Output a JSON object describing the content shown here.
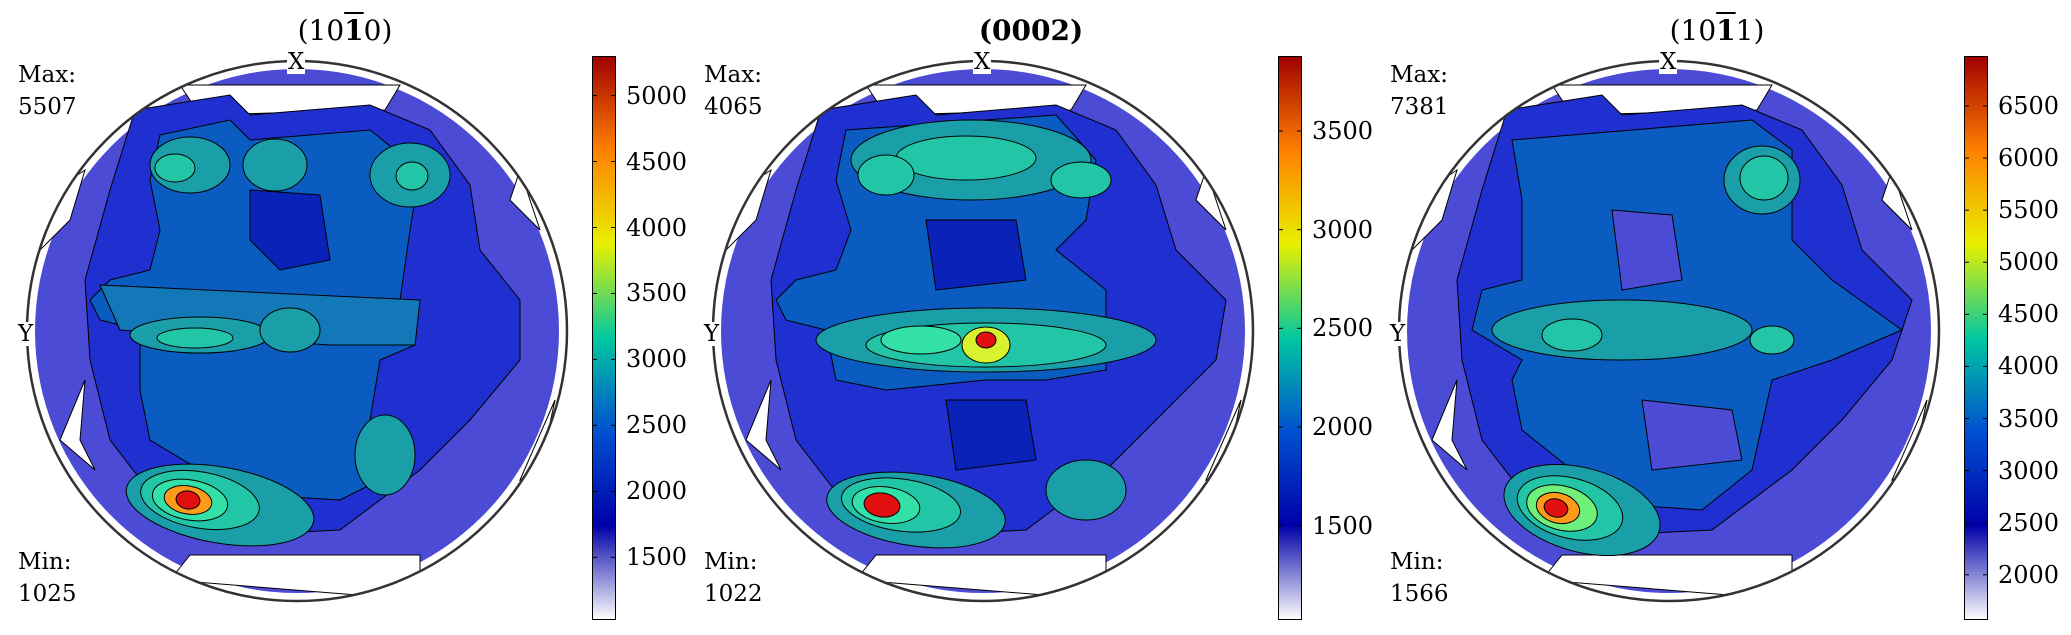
{
  "colormap": [
    "#ffffff",
    "#0000a8",
    "#0050d0",
    "#00c8a0",
    "#e8f000",
    "#ff8000",
    "#a00000"
  ],
  "panels": [
    {
      "title_pre": "(10",
      "title_bar": "1",
      "title_post": "0)",
      "max_label": "Max:",
      "max_value": "5507",
      "min_label": "Min:",
      "min_value": "1025",
      "x_label": "X",
      "y_label": "Y",
      "ticks": [
        "5000",
        "4500",
        "4000",
        "3500",
        "3000",
        "2500",
        "2000",
        "1500"
      ],
      "tick_values": [
        5000,
        4500,
        4000,
        3500,
        3000,
        2500,
        2000,
        1500
      ],
      "range": [
        1025,
        5300
      ]
    },
    {
      "title_pre": "(0002)",
      "title_bar": "",
      "title_post": "",
      "max_label": "Max:",
      "max_value": "4065",
      "min_label": "Min:",
      "min_value": "1022",
      "x_label": "X",
      "y_label": "Y",
      "ticks": [
        "3500",
        "3000",
        "2500",
        "2000",
        "1500"
      ],
      "tick_values": [
        3500,
        3000,
        2500,
        2000,
        1500
      ],
      "range": [
        1022,
        3880
      ]
    },
    {
      "title_pre": "(10",
      "title_bar": "1",
      "title_post": "1)",
      "max_label": "Max:",
      "max_value": "7381",
      "min_label": "Min:",
      "min_value": "1566",
      "x_label": "X",
      "y_label": "Y",
      "ticks": [
        "6500",
        "6000",
        "5500",
        "5000",
        "4500",
        "4000",
        "3500",
        "3000",
        "2500",
        "2000"
      ],
      "tick_values": [
        6500,
        6000,
        5500,
        5000,
        4500,
        4000,
        3500,
        3000,
        2500,
        2000
      ],
      "range": [
        1566,
        6980
      ]
    }
  ],
  "chart_data": [
    {
      "type": "heatmap",
      "title": "(10-10)",
      "max": 5507,
      "min": 1025,
      "colorbar_ticks": [
        1500,
        2000,
        2500,
        3000,
        3500,
        4000,
        4500,
        5000
      ]
    },
    {
      "type": "heatmap",
      "title": "(0002)",
      "max": 4065,
      "min": 1022,
      "colorbar_ticks": [
        1500,
        2000,
        2500,
        3000,
        3500
      ]
    },
    {
      "type": "heatmap",
      "title": "(10-11)",
      "max": 7381,
      "min": 1566,
      "colorbar_ticks": [
        2000,
        2500,
        3000,
        3500,
        4000,
        4500,
        5000,
        5500,
        6000,
        6500
      ]
    }
  ]
}
